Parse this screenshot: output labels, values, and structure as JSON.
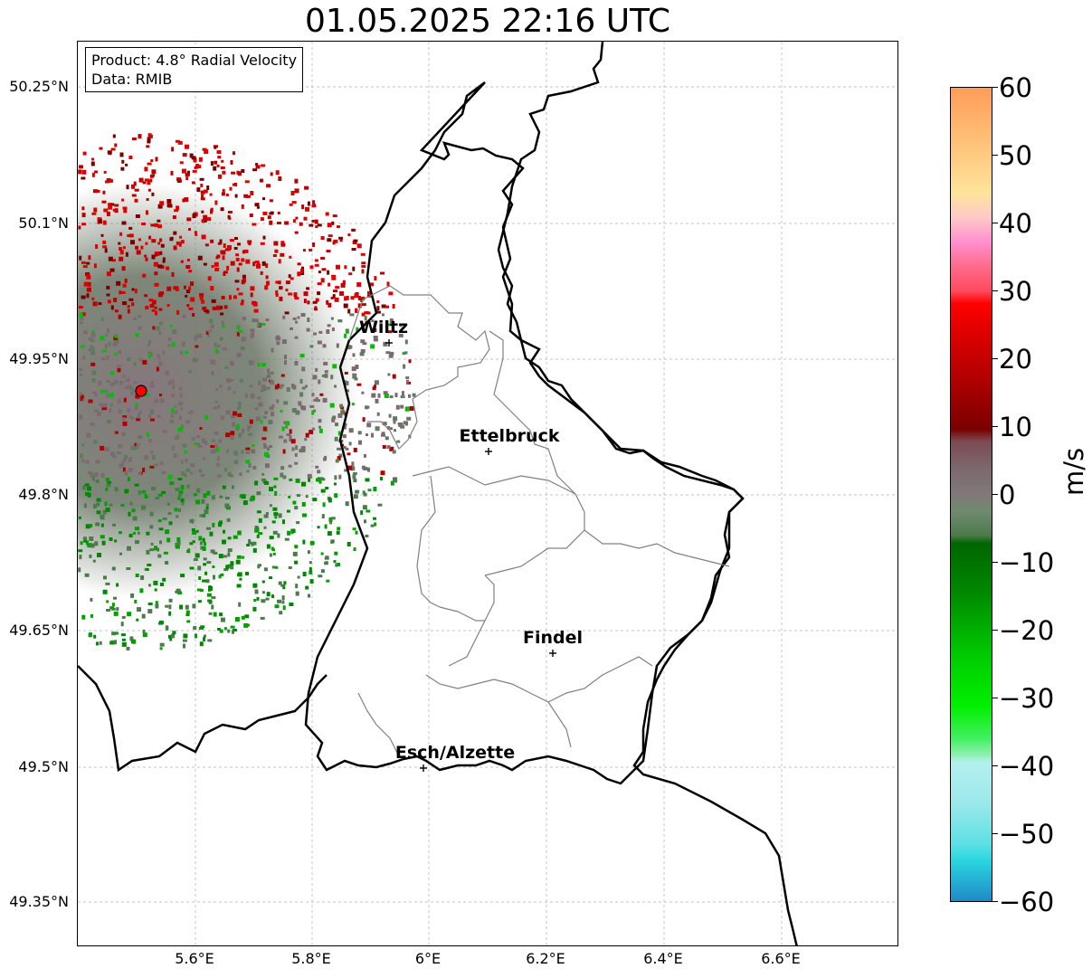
{
  "title": "01.05.2025 22:16 UTC",
  "info": {
    "product": "Product: 4.8° Radial Velocity",
    "data": "Data: RMIB"
  },
  "axes": {
    "lat_labels": [
      "50.25°N",
      "50.1°N",
      "49.95°N",
      "49.8°N",
      "49.65°N",
      "49.5°N",
      "49.35°N"
    ],
    "lon_labels": [
      "5.6°E",
      "5.8°E",
      "6°E",
      "6.2°E",
      "6.4°E",
      "6.6°E"
    ]
  },
  "cities": [
    {
      "name": "Wiltz"
    },
    {
      "name": "Ettelbruck"
    },
    {
      "name": "Findel"
    },
    {
      "name": "Esch/Alzette"
    }
  ],
  "colorbar": {
    "unit": "m/s",
    "ticks": [
      "60",
      "50",
      "40",
      "30",
      "20",
      "10",
      "0",
      "−10",
      "−20",
      "−30",
      "−40",
      "−50",
      "−60"
    ],
    "range": [
      -60,
      60
    ]
  },
  "colors": {
    "border": "#000000",
    "cantons": "#808080",
    "radar_site": "#ff0000",
    "grid": "#b0b0b0"
  }
}
